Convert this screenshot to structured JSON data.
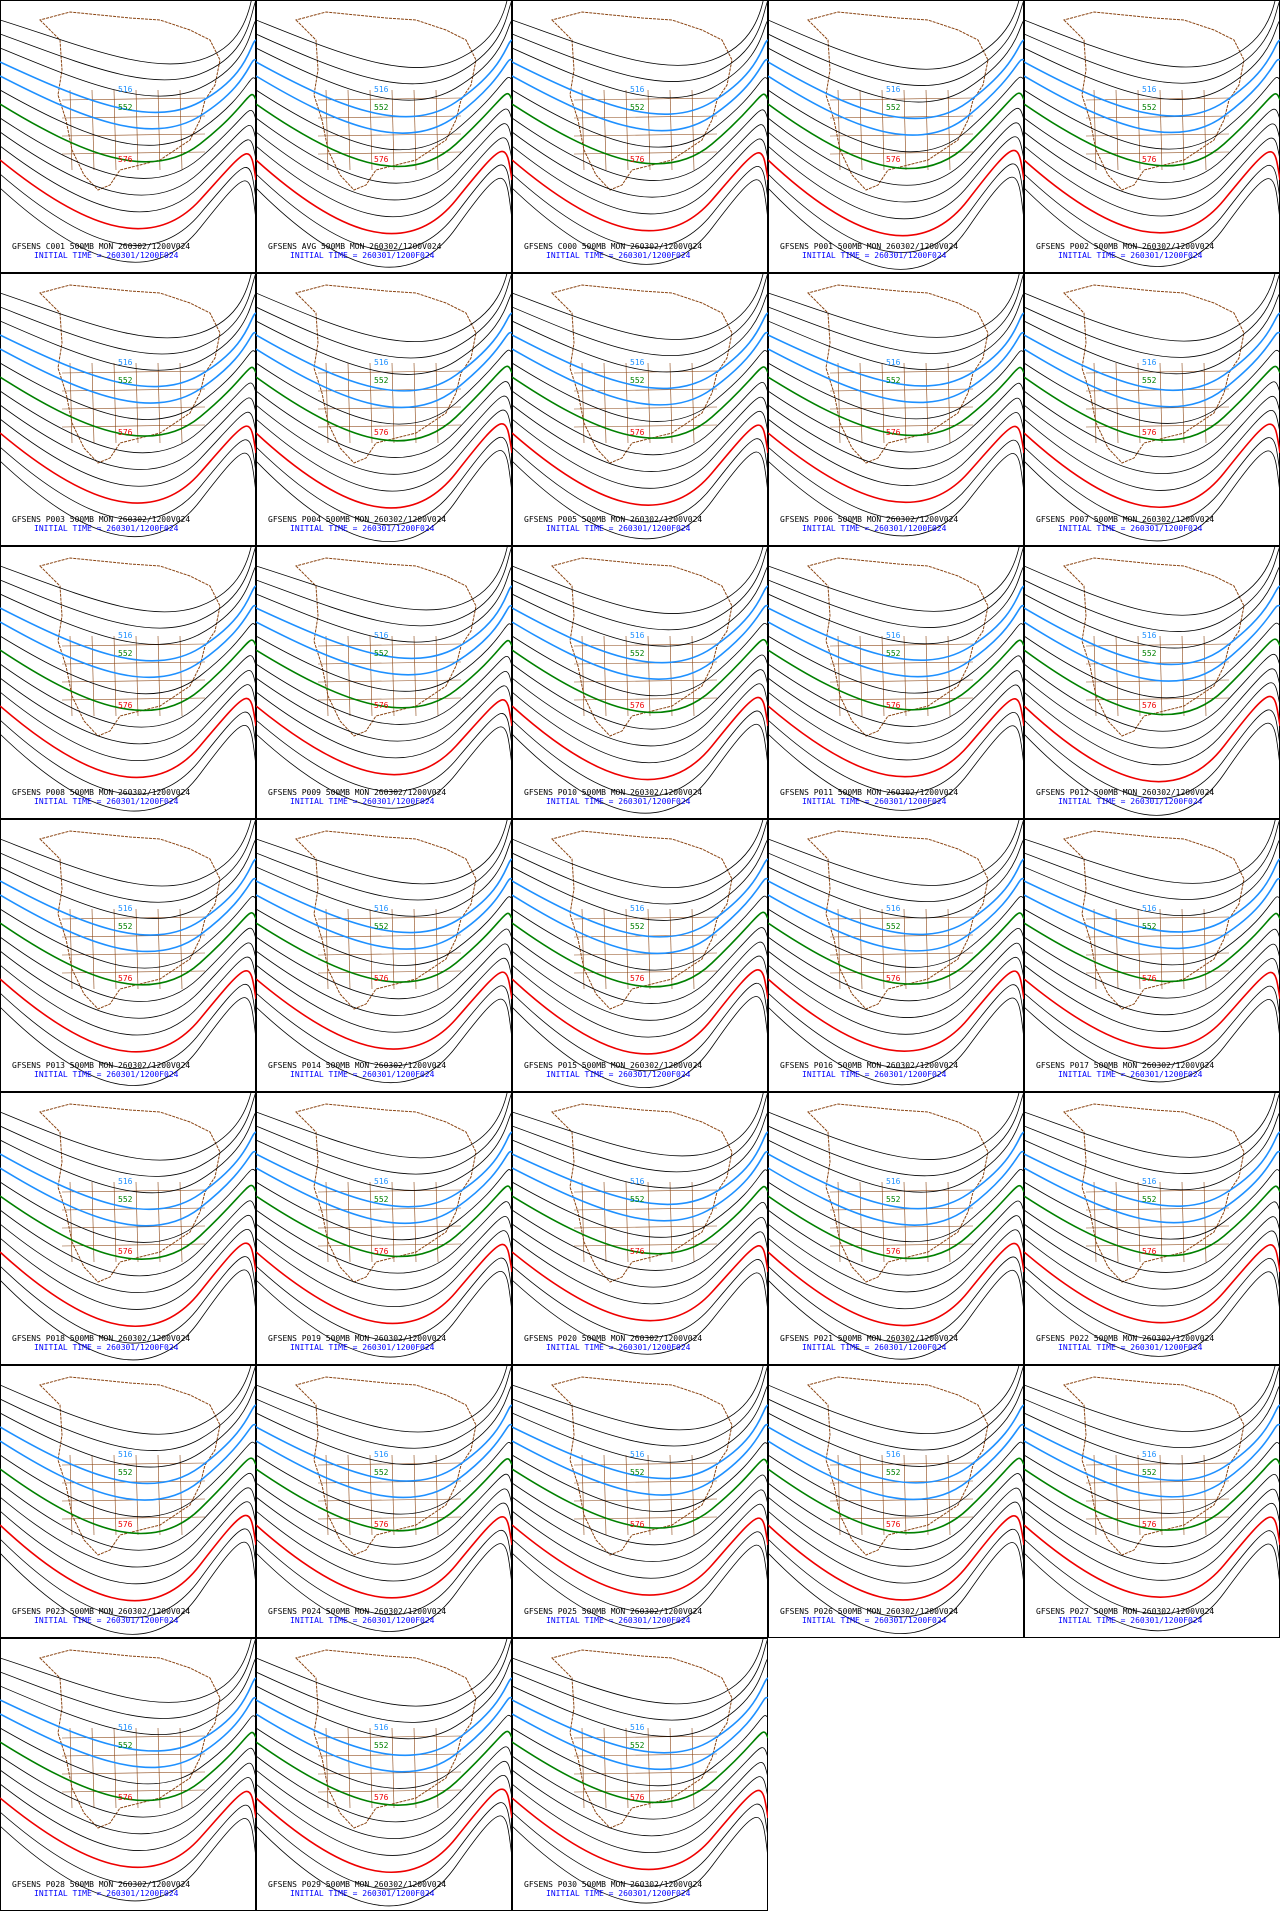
{
  "contour_labels": {
    "blue": "516",
    "green": "552",
    "red": "576"
  },
  "init_time": "INITIAL TIME = 260301/1200F024",
  "panels": [
    "GFSENS C001 500MB MON 260302/1200V024",
    "GFSENS AVG 500MB MON 260302/1200V024",
    "GFSENS C000 500MB MON 260302/1200V024",
    "GFSENS P001 500MB MON 260302/1200V024",
    "GFSENS P002 500MB MON 260302/1200V024",
    "GFSENS P003 500MB MON 260302/1200V024",
    "GFSENS P004 500MB MON 260302/1200V024",
    "GFSENS P005 500MB MON 260302/1200V024",
    "GFSENS P006 500MB MON 260302/1200V024",
    "GFSENS P007 500MB MON 260302/1200V024",
    "GFSENS P008 500MB MON 260302/1200V024",
    "GFSENS P009 500MB MON 260302/1200V024",
    "GFSENS P010 500MB MON 260302/1200V024",
    "GFSENS P011 500MB MON 260302/1200V024",
    "GFSENS P012 500MB MON 260302/1200V024",
    "GFSENS P013 500MB MON 260302/1200V024",
    "GFSENS P014 500MB MON 260302/1200V024",
    "GFSENS P015 500MB MON 260302/1200V024",
    "GFSENS P016 500MB MON 260302/1200V024",
    "GFSENS P017 500MB MON 260302/1200V024",
    "GFSENS P018 500MB MON 260302/1200V024",
    "GFSENS P019 500MB MON 260302/1200V024",
    "GFSENS P020 500MB MON 260302/1200V024",
    "GFSENS P021 500MB MON 260302/1200V024",
    "GFSENS P022 500MB MON 260302/1200V024",
    "GFSENS P023 500MB MON 260302/1200V024",
    "GFSENS P024 500MB MON 260302/1200V024",
    "GFSENS P025 500MB MON 260302/1200V024",
    "GFSENS P026 500MB MON 260302/1200V024",
    "GFSENS P027 500MB MON 260302/1200V024",
    "GFSENS P028 500MB MON 260302/1200V024",
    "GFSENS P029 500MB MON 260302/1200V024",
    "GFSENS P030 500MB MON 260302/1200V024"
  ]
}
